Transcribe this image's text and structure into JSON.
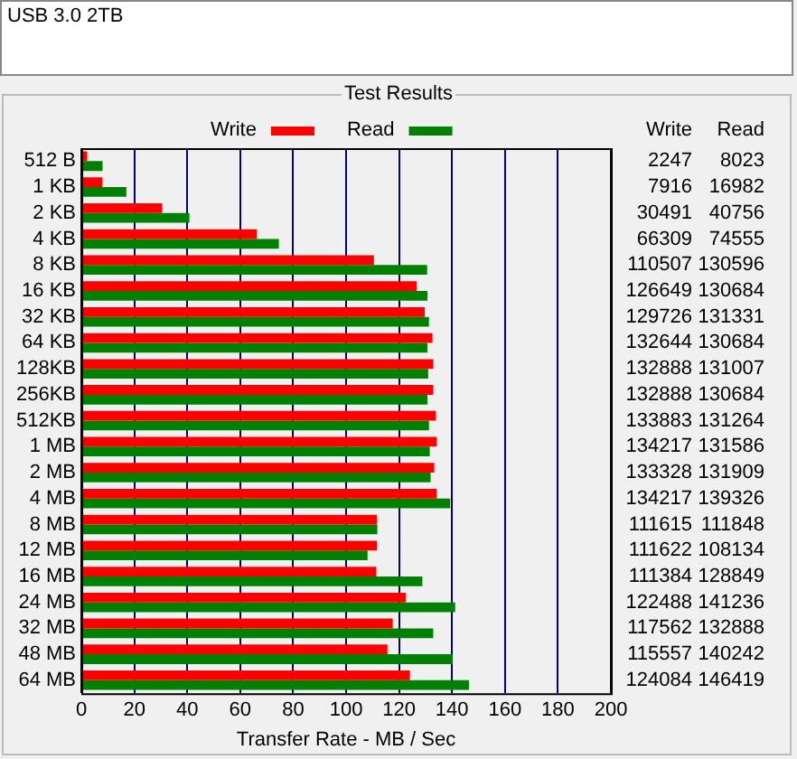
{
  "chart_data": {
    "type": "bar",
    "orientation": "horizontal",
    "title": "USB 3.0 2TB",
    "subtitle": "Test Results",
    "xlabel": "Transfer Rate - MB / Sec",
    "categories": [
      "512 B",
      "1 KB",
      "2 KB",
      "4 KB",
      "8 KB",
      "16 KB",
      "32 KB",
      "64 KB",
      "128KB",
      "256KB",
      "512KB",
      "1 MB",
      "2 MB",
      "4 MB",
      "8 MB",
      "12 MB",
      "16 MB",
      "24 MB",
      "32 MB",
      "48 MB",
      "64 MB"
    ],
    "series": [
      {
        "name": "Write",
        "color": "#ff0000",
        "values": [
          2.2,
          7.9,
          30.5,
          66.3,
          110.5,
          126.6,
          129.7,
          132.6,
          132.9,
          132.9,
          133.9,
          134.2,
          133.3,
          134.2,
          111.6,
          111.6,
          111.4,
          122.5,
          117.6,
          115.6,
          124.1
        ]
      },
      {
        "name": "Read",
        "color": "#008000",
        "values": [
          8.0,
          17.0,
          40.8,
          74.6,
          130.6,
          130.7,
          131.3,
          130.7,
          131.0,
          130.7,
          131.3,
          131.6,
          131.9,
          139.3,
          111.8,
          108.1,
          128.8,
          141.2,
          132.9,
          140.2,
          146.4
        ]
      }
    ],
    "annotations": [
      "2247",
      "8023",
      "7916",
      "16982",
      "30491",
      "40756",
      "66309",
      "74555",
      "110507",
      "130596",
      "126649",
      "130684",
      "129726",
      "131331",
      "132644",
      "130684",
      "132888",
      "131007",
      "132888",
      "130684",
      "133883",
      "131264",
      "134217",
      "131586",
      "133328",
      "131909",
      "134217",
      "139326",
      "111615",
      "111848",
      "111622",
      "108134",
      "111384",
      "128849",
      "122488",
      "141236",
      "117562",
      "132888",
      "115557",
      "140242",
      "124084",
      "146419"
    ],
    "xlim": [
      0,
      200
    ],
    "xticks": [
      0,
      20,
      40,
      60,
      80,
      100,
      120,
      140,
      160,
      180,
      200
    ],
    "grid": "x",
    "legend": "top"
  }
}
